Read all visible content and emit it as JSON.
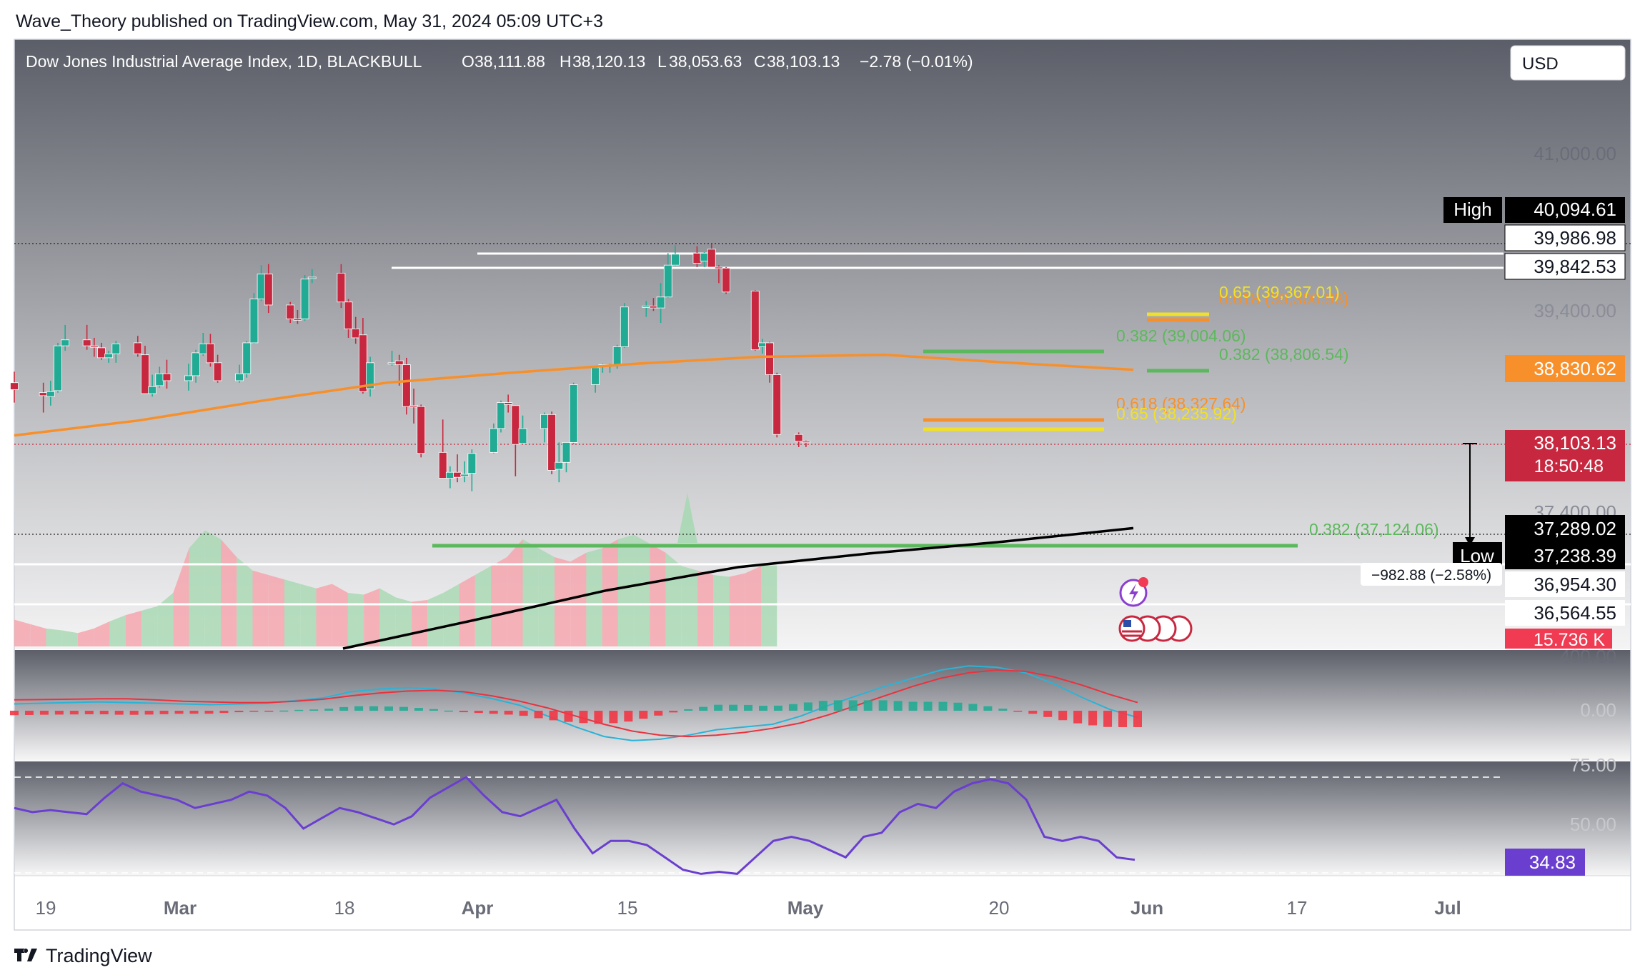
{
  "header": {
    "published": "Wave_Theory published on TradingView.com, May 31, 2024 05:09 UTC+3"
  },
  "legend": {
    "symbol": "Dow Jones Industrial Average Index, 1D, BLACKBULL",
    "o_label": "O",
    "o": "38,111.88",
    "h_label": "H",
    "h": "38,120.13",
    "l_label": "L",
    "l": "38,053.63",
    "c_label": "C",
    "c": "38,103.13",
    "change": "−2.78 (−0.01%)"
  },
  "currency_button": "USD",
  "footer": {
    "brand": "TradingView"
  },
  "colors": {
    "up": "#22ab94",
    "down": "#c8283f",
    "ema50": "#f7902b",
    "ema200": "#000000",
    "fib_green": "#5cb85c",
    "fib_orange": "#f7902b",
    "fib_yellow": "#f0e02a",
    "macd": "#2bb3d6",
    "signal": "#e8333f",
    "rsi": "#6a3fcf"
  },
  "price_scale": {
    "ticks": [
      "41,000.00",
      "39,400.00",
      "37,400.00",
      "36,954.30",
      "36,564.55"
    ],
    "high_label": "High",
    "high": "40,094.61",
    "level_1": "39,986.98",
    "level_2": "39,842.53",
    "ema50": "38,830.62",
    "last": "38,103.13",
    "countdown": "18:50:48",
    "ema200": "37,289.02",
    "low_label": "Low",
    "low": "37,238.39",
    "volume": "15.736 K"
  },
  "macd_scale": {
    "ticks": [
      "400.00",
      "0.00"
    ]
  },
  "rsi_scale": {
    "ticks": [
      "75.00",
      "50.00"
    ],
    "current": "34.83"
  },
  "x_axis": {
    "labels": [
      "19",
      "Mar",
      "18",
      "Apr",
      "15",
      "May",
      "20",
      "Jun",
      "17",
      "Jul"
    ]
  },
  "annotations": {
    "fib_a": "0.65 (39,367.01)",
    "fib_b": "0.618 (39,300.98)",
    "fib_c": "0.382 (39,004.06)",
    "fib_d": "0.382 (38,806.54)",
    "fib_e": "0.618 (38,327.64)",
    "fib_f": "0.65 (38,235.92)",
    "fib_g": "0.382 (37,124.06)",
    "range_note": "−982.88 (−2.58%)"
  },
  "chart_data": [
    {
      "type": "candlestick",
      "title": "Dow Jones Industrial Average Index, 1D, BLACKBULL",
      "ylim": [
        36300,
        41500
      ],
      "x_start": "2024-02-16",
      "candles": [
        {
          "date": "2024-02-16",
          "o": 38700,
          "h": 38810,
          "l": 38500,
          "c": 38630
        },
        {
          "date": "2024-02-20",
          "o": 38600,
          "h": 38700,
          "l": 38400,
          "c": 38570
        },
        {
          "date": "2024-02-21",
          "o": 38560,
          "h": 38720,
          "l": 38470,
          "c": 38610
        },
        {
          "date": "2024-02-22",
          "o": 38620,
          "h": 39100,
          "l": 38600,
          "c": 39070
        },
        {
          "date": "2024-02-23",
          "o": 39070,
          "h": 39280,
          "l": 39020,
          "c": 39130
        },
        {
          "date": "2024-02-26",
          "o": 39130,
          "h": 39280,
          "l": 39030,
          "c": 39070
        },
        {
          "date": "2024-02-27",
          "o": 39070,
          "h": 39150,
          "l": 38960,
          "c": 39060
        },
        {
          "date": "2024-02-28",
          "o": 39050,
          "h": 39100,
          "l": 38930,
          "c": 38950
        },
        {
          "date": "2024-02-29",
          "o": 38950,
          "h": 39020,
          "l": 38900,
          "c": 38990
        },
        {
          "date": "2024-03-01",
          "o": 38990,
          "h": 39120,
          "l": 38900,
          "c": 39090
        },
        {
          "date": "2024-03-04",
          "o": 39100,
          "h": 39170,
          "l": 38960,
          "c": 38990
        },
        {
          "date": "2024-03-05",
          "o": 38980,
          "h": 39070,
          "l": 38600,
          "c": 38590
        },
        {
          "date": "2024-03-06",
          "o": 38590,
          "h": 38780,
          "l": 38560,
          "c": 38660
        },
        {
          "date": "2024-03-07",
          "o": 38670,
          "h": 38860,
          "l": 38650,
          "c": 38790
        },
        {
          "date": "2024-03-08",
          "o": 38790,
          "h": 38930,
          "l": 38640,
          "c": 38720
        },
        {
          "date": "2024-03-11",
          "o": 38720,
          "h": 38890,
          "l": 38620,
          "c": 38770
        },
        {
          "date": "2024-03-12",
          "o": 38770,
          "h": 39030,
          "l": 38700,
          "c": 39000
        },
        {
          "date": "2024-03-13",
          "o": 38990,
          "h": 39200,
          "l": 38970,
          "c": 39090
        },
        {
          "date": "2024-03-14",
          "o": 39090,
          "h": 39190,
          "l": 38860,
          "c": 38900
        },
        {
          "date": "2024-03-15",
          "o": 38900,
          "h": 38980,
          "l": 38700,
          "c": 38720
        },
        {
          "date": "2024-03-18",
          "o": 38720,
          "h": 38880,
          "l": 38700,
          "c": 38790
        },
        {
          "date": "2024-03-19",
          "o": 38790,
          "h": 39120,
          "l": 38750,
          "c": 39100
        },
        {
          "date": "2024-03-20",
          "o": 39100,
          "h": 39600,
          "l": 39090,
          "c": 39540
        },
        {
          "date": "2024-03-21",
          "o": 39540,
          "h": 39880,
          "l": 39520,
          "c": 39790
        },
        {
          "date": "2024-03-22",
          "o": 39790,
          "h": 39890,
          "l": 39400,
          "c": 39480
        },
        {
          "date": "2024-03-25",
          "o": 39480,
          "h": 39510,
          "l": 39300,
          "c": 39340
        },
        {
          "date": "2024-03-26",
          "o": 39340,
          "h": 39430,
          "l": 39290,
          "c": 39330
        },
        {
          "date": "2024-03-27",
          "o": 39340,
          "h": 39780,
          "l": 39320,
          "c": 39740
        },
        {
          "date": "2024-03-28",
          "o": 39750,
          "h": 39840,
          "l": 39700,
          "c": 39760
        },
        {
          "date": "2024-04-01",
          "o": 39800,
          "h": 39890,
          "l": 39450,
          "c": 39510
        },
        {
          "date": "2024-04-02",
          "o": 39510,
          "h": 39540,
          "l": 39150,
          "c": 39240
        },
        {
          "date": "2024-04-03",
          "o": 39240,
          "h": 39360,
          "l": 39090,
          "c": 39150
        },
        {
          "date": "2024-04-04",
          "o": 39180,
          "h": 39350,
          "l": 38590,
          "c": 38610
        },
        {
          "date": "2024-04-05",
          "o": 38640,
          "h": 38960,
          "l": 38560,
          "c": 38900
        },
        {
          "date": "2024-04-08",
          "o": 38900,
          "h": 39020,
          "l": 38870,
          "c": 38900
        },
        {
          "date": "2024-04-09",
          "o": 38920,
          "h": 38980,
          "l": 38670,
          "c": 38880
        },
        {
          "date": "2024-04-10",
          "o": 38880,
          "h": 38950,
          "l": 38380,
          "c": 38460
        },
        {
          "date": "2024-04-11",
          "o": 38470,
          "h": 38640,
          "l": 38290,
          "c": 38460
        },
        {
          "date": "2024-04-12",
          "o": 38460,
          "h": 38480,
          "l": 37950,
          "c": 37990
        },
        {
          "date": "2024-04-15",
          "o": 38000,
          "h": 38330,
          "l": 37740,
          "c": 37740
        },
        {
          "date": "2024-04-16",
          "o": 37740,
          "h": 37860,
          "l": 37640,
          "c": 37800
        },
        {
          "date": "2024-04-17",
          "o": 37800,
          "h": 37980,
          "l": 37700,
          "c": 37750
        },
        {
          "date": "2024-04-18",
          "o": 37760,
          "h": 37910,
          "l": 37700,
          "c": 37780
        },
        {
          "date": "2024-04-19",
          "o": 37790,
          "h": 38030,
          "l": 37610,
          "c": 37990
        },
        {
          "date": "2024-04-22",
          "o": 38000,
          "h": 38290,
          "l": 37990,
          "c": 38240
        },
        {
          "date": "2024-04-23",
          "o": 38240,
          "h": 38520,
          "l": 38200,
          "c": 38500
        },
        {
          "date": "2024-04-24",
          "o": 38500,
          "h": 38580,
          "l": 38400,
          "c": 38480
        },
        {
          "date": "2024-04-25",
          "o": 38470,
          "h": 38470,
          "l": 37760,
          "c": 38080
        },
        {
          "date": "2024-04-26",
          "o": 38090,
          "h": 38370,
          "l": 38090,
          "c": 38240
        },
        {
          "date": "2024-04-29",
          "o": 38240,
          "h": 38400,
          "l": 38100,
          "c": 38380
        },
        {
          "date": "2024-04-30",
          "o": 38380,
          "h": 38410,
          "l": 37780,
          "c": 37820
        },
        {
          "date": "2024-05-01",
          "o": 37830,
          "h": 38100,
          "l": 37700,
          "c": 37900
        },
        {
          "date": "2024-05-02",
          "o": 37900,
          "h": 38100,
          "l": 37800,
          "c": 38100
        },
        {
          "date": "2024-05-03",
          "o": 38100,
          "h": 38700,
          "l": 38080,
          "c": 38680
        },
        {
          "date": "2024-05-06",
          "o": 38680,
          "h": 38870,
          "l": 38600,
          "c": 38850
        },
        {
          "date": "2024-05-07",
          "o": 38860,
          "h": 38890,
          "l": 38800,
          "c": 38880
        },
        {
          "date": "2024-05-08",
          "o": 38880,
          "h": 38890,
          "l": 38800,
          "c": 38880
        },
        {
          "date": "2024-05-09",
          "o": 38880,
          "h": 39080,
          "l": 38840,
          "c": 39060
        },
        {
          "date": "2024-05-10",
          "o": 39060,
          "h": 39500,
          "l": 39050,
          "c": 39460
        },
        {
          "date": "2024-05-13",
          "o": 39470,
          "h": 39520,
          "l": 39360,
          "c": 39470
        },
        {
          "date": "2024-05-14",
          "o": 39470,
          "h": 39550,
          "l": 39420,
          "c": 39450
        },
        {
          "date": "2024-05-15",
          "o": 39450,
          "h": 39700,
          "l": 39300,
          "c": 39560
        },
        {
          "date": "2024-05-16",
          "o": 39560,
          "h": 40000,
          "l": 39550,
          "c": 39880
        },
        {
          "date": "2024-05-17",
          "o": 39880,
          "h": 40080,
          "l": 39870,
          "c": 39990
        },
        {
          "date": "2024-05-20",
          "o": 40000,
          "h": 40070,
          "l": 39860,
          "c": 39900
        },
        {
          "date": "2024-05-21",
          "o": 39920,
          "h": 40010,
          "l": 39860,
          "c": 40000
        },
        {
          "date": "2024-05-22",
          "o": 40040,
          "h": 40094,
          "l": 39880,
          "c": 39860
        },
        {
          "date": "2024-05-23",
          "o": 39860,
          "h": 39880,
          "l": 39700,
          "c": 39850
        },
        {
          "date": "2024-05-24",
          "o": 39850,
          "h": 39860,
          "l": 39590,
          "c": 39610
        },
        {
          "date": "2024-05-28",
          "o": 39620,
          "h": 39630,
          "l": 39020,
          "c": 39030
        },
        {
          "date": "2024-05-29",
          "o": 39060,
          "h": 39140,
          "l": 38990,
          "c": 39100
        },
        {
          "date": "2024-05-30",
          "o": 39100,
          "h": 39110,
          "l": 38700,
          "c": 38780
        },
        {
          "date": "2024-05-31",
          "o": 38780,
          "h": 38800,
          "l": 38150,
          "c": 38180
        },
        {
          "date": "2024-06-03",
          "o": 38180,
          "h": 38200,
          "l": 38053,
          "c": 38111
        },
        {
          "date": "2024-06-04",
          "o": 38111.88,
          "h": 38120.13,
          "l": 38053.63,
          "c": 38103.13
        }
      ],
      "ema50": [
        38170,
        38320,
        38520,
        38700,
        38800,
        38890,
        38960,
        38980,
        38900,
        38830
      ],
      "ema200": [
        36150,
        36420,
        36700,
        36920,
        37050,
        37160,
        37289
      ]
    },
    {
      "type": "bar",
      "series": [
        {
          "values": [
            210,
            205,
            200,
            198,
            195,
            200,
            208,
            215,
            220,
            225,
            240,
            290,
            310,
            300,
            280,
            265,
            260,
            255,
            250,
            245,
            250,
            240,
            238,
            245,
            235,
            230,
            232,
            240,
            250,
            260,
            270,
            280,
            300,
            290,
            280,
            275,
            285,
            290,
            300,
            305,
            295,
            285,
            270,
            265,
            260,
            258,
            262,
            270,
            275
          ]
        }
      ],
      "range": [
        "2024-02-16",
        "2024-05-31"
      ]
    },
    {
      "type": "line",
      "series": [
        {
          "values": [
            50,
            55,
            60,
            65,
            60,
            55,
            50,
            45,
            50,
            55,
            75,
            95,
            140,
            160,
            170,
            160,
            130,
            90,
            40,
            -40,
            -120,
            -190,
            -220,
            -210,
            -180,
            -140,
            -120,
            -100,
            -40,
            40,
            110,
            180,
            240,
            300,
            330,
            320,
            280,
            200,
            100,
            10,
            -50
          ]
        },
        {
          "values": [
            80,
            82,
            85,
            88,
            88,
            80,
            70,
            65,
            60,
            60,
            70,
            85,
            110,
            130,
            145,
            150,
            140,
            110,
            70,
            20,
            -40,
            -100,
            -150,
            -180,
            -190,
            -180,
            -160,
            -130,
            -90,
            -30,
            40,
            110,
            180,
            240,
            280,
            300,
            290,
            250,
            190,
            120,
            60
          ]
        }
      ],
      "ylim": [
        -450,
        550
      ]
    },
    {
      "type": "line",
      "series": [
        {
          "values": [
            60,
            58,
            59,
            58,
            57,
            65,
            72,
            68,
            66,
            64,
            60,
            62,
            64,
            68,
            66,
            60,
            50,
            55,
            60,
            58,
            55,
            52,
            56,
            65,
            70,
            75,
            66,
            58,
            56,
            60,
            64,
            50,
            38,
            44,
            44,
            42,
            36,
            30,
            28,
            29,
            28,
            36,
            44,
            46,
            44,
            40,
            36,
            46,
            48,
            58,
            62,
            60,
            68,
            72,
            74,
            72,
            64,
            46,
            44,
            46,
            44,
            36,
            34.83
          ]
        }
      ],
      "ylim": [
        20,
        80
      ]
    }
  ]
}
